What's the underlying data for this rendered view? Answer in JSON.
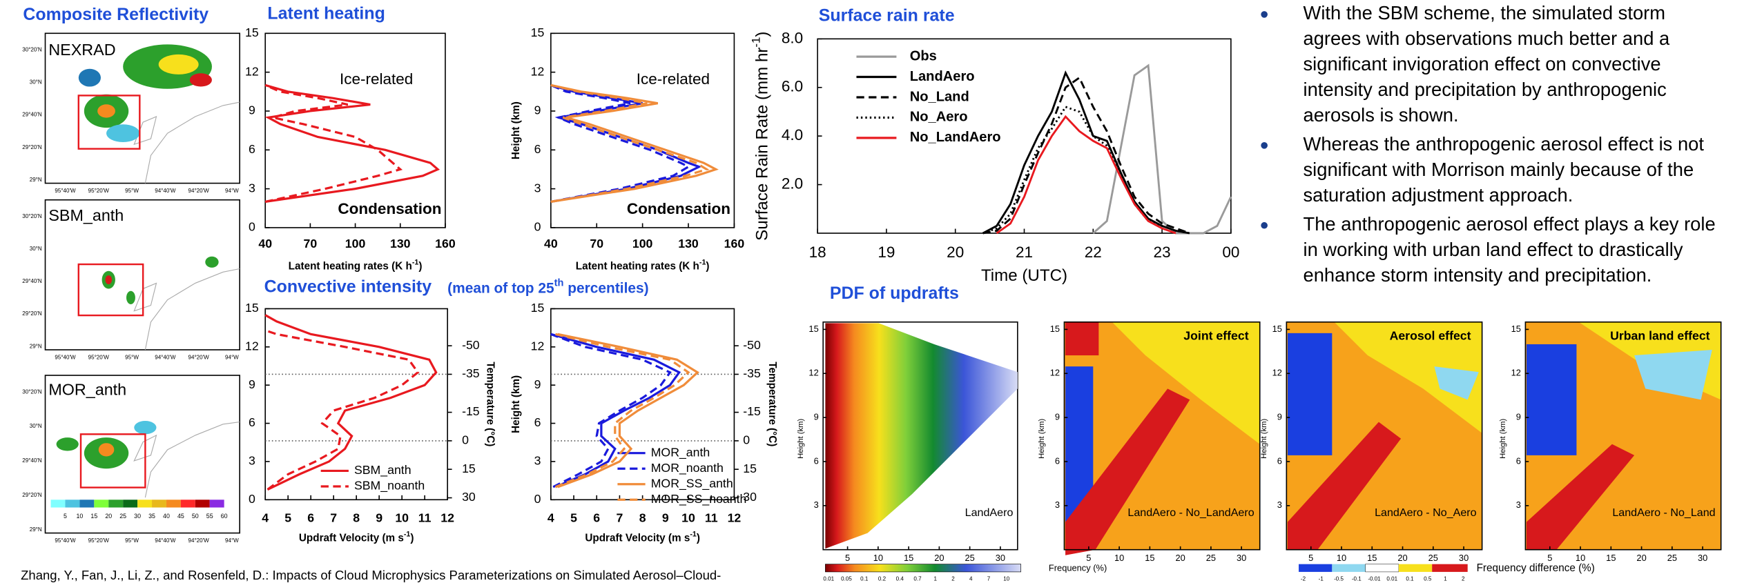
{
  "reflectivity": {
    "title": "Composite Reflectivity",
    "maps": [
      "NEXRAD",
      "SBM_anth",
      "MOR_anth"
    ],
    "lat_labels": [
      "30°20'N",
      "30°N",
      "29°40'N",
      "29°20'N",
      "29°N"
    ],
    "lon_labels": [
      "95°40'W",
      "95°20'W",
      "95°W",
      "94°40'W",
      "94°20'W",
      "94°W"
    ],
    "colorbar": [
      5,
      10,
      15,
      20,
      25,
      30,
      35,
      40,
      45,
      50,
      55,
      60
    ]
  },
  "chart_data": [
    {
      "type": "line",
      "title": "Latent heating",
      "xlabel": [
        "Latent heating rates (K h",
        "-1",
        ")"
      ],
      "xlim": [
        40,
        160
      ],
      "xticks": [
        40,
        70,
        100,
        130,
        160
      ],
      "ylim": [
        0,
        15
      ],
      "yticks": [
        0,
        3,
        6,
        9,
        12,
        15
      ],
      "annotations": [
        "Ice-related",
        "Condensation"
      ],
      "series": [
        {
          "color": "#e8191f",
          "dash": "solid",
          "heights": [
            2,
            3,
            4,
            4.5,
            5,
            6,
            7,
            8,
            8.5,
            9,
            9.5,
            10,
            10.5,
            11
          ],
          "values": [
            40,
            100,
            145,
            155,
            150,
            120,
            75,
            50,
            42,
            70,
            110,
            85,
            55,
            40
          ]
        },
        {
          "color": "#e8191f",
          "dash": "dashed",
          "heights": [
            2,
            3,
            4,
            4.5,
            5,
            6,
            7,
            8,
            8.5,
            9,
            9.5,
            10,
            10.5,
            11
          ],
          "values": [
            40,
            80,
            115,
            130,
            125,
            115,
            100,
            65,
            45,
            60,
            95,
            75,
            50,
            40
          ]
        }
      ]
    },
    {
      "type": "line",
      "ylabel": "Height (km)",
      "xlabel": [
        "Latent heating rates (K h",
        "-1",
        ")"
      ],
      "xlim": [
        40,
        160
      ],
      "xticks": [
        40,
        70,
        100,
        130,
        160
      ],
      "ylim": [
        0,
        15
      ],
      "yticks": [
        0,
        3,
        6,
        9,
        12,
        15
      ],
      "annotations": [
        "Ice-related",
        "Condensation"
      ],
      "series": [
        {
          "color": "#1a1adc",
          "dash": "solid",
          "heights": [
            2,
            3,
            4,
            4.7,
            5,
            6,
            7,
            8,
            8.5,
            9,
            9.6,
            10,
            10.5,
            11
          ],
          "values": [
            40,
            90,
            125,
            137,
            130,
            110,
            85,
            60,
            45,
            70,
            100,
            80,
            55,
            40
          ]
        },
        {
          "color": "#1a1adc",
          "dash": "dashed",
          "heights": [
            2,
            3,
            4,
            4.7,
            5,
            6,
            7,
            8,
            8.5,
            9,
            9.6,
            10,
            10.5,
            11
          ],
          "values": [
            40,
            85,
            120,
            130,
            125,
            105,
            80,
            55,
            45,
            65,
            92,
            75,
            50,
            40
          ]
        },
        {
          "color": "#f08c3a",
          "dash": "solid",
          "heights": [
            2,
            3,
            4,
            4.5,
            5,
            6,
            7,
            8,
            8.5,
            9,
            9.6,
            10,
            10.5,
            11
          ],
          "values": [
            40,
            95,
            135,
            148,
            140,
            115,
            90,
            65,
            50,
            80,
            110,
            90,
            60,
            40
          ]
        },
        {
          "color": "#f08c3a",
          "dash": "dashed",
          "heights": [
            2,
            3,
            4,
            4.5,
            5,
            6,
            7,
            8,
            8.5,
            9,
            9.6,
            10,
            10.5,
            11
          ],
          "values": [
            40,
            90,
            128,
            142,
            135,
            110,
            85,
            60,
            48,
            75,
            103,
            85,
            58,
            40
          ]
        }
      ]
    },
    {
      "type": "line",
      "title": "Convective intensity",
      "subtitle": [
        "(mean of top 25",
        "th",
        " percentiles)"
      ],
      "xlabel": [
        "Updraft Velocity (m s",
        "-1",
        ")"
      ],
      "xlim": [
        4,
        12
      ],
      "xticks": [
        4,
        5,
        6,
        7,
        8,
        9,
        10,
        11,
        12
      ],
      "ylim": [
        0,
        15
      ],
      "yticks": [
        0,
        3,
        6,
        9,
        12,
        15
      ],
      "y2label": "Temperature (°C)",
      "y2lim": [
        31,
        -69.5
      ],
      "y2ticks": [
        -50,
        -35,
        -15,
        0,
        15,
        30
      ],
      "ref_lines_y2": [
        -35,
        0
      ],
      "legend": "lower right",
      "series": [
        {
          "name": "SBM_anth",
          "color": "#e8191f",
          "dash": "solid",
          "heights": [
            0.8,
            2,
            3,
            4,
            5,
            6,
            7,
            8,
            9,
            10,
            11,
            12,
            13,
            14,
            14.5
          ],
          "values": [
            4.1,
            5.5,
            6.8,
            7.5,
            7.8,
            7.2,
            7.5,
            9.5,
            11,
            11.5,
            11.2,
            9,
            6,
            4.5,
            4
          ]
        },
        {
          "name": "SBM_noanth",
          "color": "#e8191f",
          "dash": "dashed",
          "heights": [
            0.8,
            2,
            3,
            4,
            5,
            6,
            7,
            8,
            9,
            10,
            11,
            12,
            13,
            13.3
          ],
          "values": [
            4.1,
            5,
            6.2,
            7.2,
            7.3,
            6.5,
            7,
            8.8,
            10,
            10.7,
            10.3,
            7.5,
            4.5,
            4
          ]
        }
      ]
    },
    {
      "type": "line",
      "ylabel": "Height (km)",
      "xlabel": [
        "Updraft Velocity (m s",
        "-1",
        ")"
      ],
      "xlim": [
        4,
        12
      ],
      "xticks": [
        4,
        5,
        6,
        7,
        8,
        9,
        10,
        11,
        12
      ],
      "ylim": [
        0,
        15
      ],
      "yticks": [
        0,
        3,
        6,
        9,
        12,
        15
      ],
      "y2label": "Temperature (°C)",
      "y2lim": [
        31,
        -69.5
      ],
      "y2ticks": [
        -50,
        -35,
        -15,
        0,
        15,
        30
      ],
      "ref_lines_y2": [
        -35,
        0
      ],
      "legend": "lower right",
      "series": [
        {
          "name": "MOR_anth",
          "color": "#1a1adc",
          "dash": "solid",
          "heights": [
            1,
            2,
            3,
            4,
            5,
            6,
            7,
            8,
            9,
            10,
            11,
            12,
            13
          ],
          "values": [
            4.2,
            5.5,
            6.5,
            6.8,
            6.2,
            6.2,
            7.2,
            8.3,
            9.2,
            9.6,
            8.5,
            6,
            4
          ]
        },
        {
          "name": "MOR_noanth",
          "color": "#1a1adc",
          "dash": "dashed",
          "heights": [
            1,
            2,
            3,
            4,
            5,
            6,
            7,
            8,
            9,
            10,
            11,
            12,
            13
          ],
          "values": [
            4.1,
            5.2,
            6.2,
            6.5,
            6,
            6.1,
            7,
            8,
            8.8,
            9.2,
            8,
            5.5,
            4
          ]
        },
        {
          "name": "MOR_SS_anth",
          "color": "#f08c3a",
          "dash": "solid",
          "heights": [
            1,
            2,
            3,
            4,
            5,
            6,
            7,
            8,
            9,
            10,
            11,
            12,
            13
          ],
          "values": [
            4.3,
            5.8,
            7,
            7.5,
            7,
            7,
            7.8,
            8.8,
            9.8,
            10.4,
            9.5,
            7,
            4.3
          ]
        },
        {
          "name": "MOR_SS_noanth",
          "color": "#f08c3a",
          "dash": "dashed",
          "heights": [
            1,
            2,
            3,
            4,
            5,
            6,
            7,
            8,
            9,
            10,
            11,
            12,
            13
          ],
          "values": [
            4.2,
            5.6,
            6.7,
            7.2,
            6.8,
            6.8,
            7.5,
            8.5,
            9.4,
            10,
            9.2,
            6.5,
            4.2
          ]
        }
      ]
    },
    {
      "type": "line",
      "title": "Surface rain rate",
      "xlabel": "Time (UTC)",
      "ylabel": [
        "Surface Rain Rate (mm hr",
        "-1",
        ")"
      ],
      "x": [
        20.4,
        20.6,
        20.8,
        21.0,
        21.2,
        21.4,
        21.6,
        21.8,
        22.0,
        22.2,
        22.4,
        22.6,
        22.8,
        23.0,
        23.2,
        23.4,
        23.6,
        23.8,
        24.0
      ],
      "xlim": [
        18,
        24
      ],
      "xticks": [
        18,
        19,
        20,
        21,
        22,
        23,
        {
          "value": 24,
          "label": "00"
        }
      ],
      "ylim": [
        0,
        8
      ],
      "yticks": [
        {
          "value": 2,
          "label": "2.0"
        },
        {
          "value": 4,
          "label": "4.0"
        },
        {
          "value": 6,
          "label": "6.0"
        },
        {
          "value": 8,
          "label": "8.0"
        }
      ],
      "legend": "upper left",
      "series": [
        {
          "name": "Obs",
          "color": "#9a9a9a",
          "dash": "solid",
          "values": [
            null,
            null,
            null,
            null,
            null,
            null,
            null,
            null,
            0,
            0.5,
            3.5,
            6.5,
            6.9,
            0.5,
            0,
            0,
            0,
            0.3,
            1.5
          ]
        },
        {
          "name": "LandAero",
          "color": "#000000",
          "dash": "solid",
          "values": [
            0,
            0.3,
            1.2,
            2.8,
            4.0,
            5.0,
            6.6,
            5.5,
            4.0,
            3.8,
            2.5,
            1.3,
            0.6,
            0.3,
            0.1,
            0,
            null,
            null,
            null
          ]
        },
        {
          "name": "No_Land",
          "color": "#000000",
          "dash": "dashed",
          "values": [
            0,
            0.1,
            0.6,
            2.0,
            3.3,
            4.5,
            6.0,
            6.4,
            5.2,
            4.2,
            2.8,
            1.5,
            0.8,
            0.4,
            0.2,
            0,
            null,
            null,
            null
          ]
        },
        {
          "name": "No_Aero",
          "color": "#000000",
          "dash": "dotted",
          "values": [
            0,
            0.2,
            0.8,
            2.2,
            3.5,
            4.3,
            5.2,
            5.0,
            4.0,
            3.6,
            2.4,
            1.2,
            0.5,
            0.3,
            0.1,
            0,
            null,
            null,
            null
          ]
        },
        {
          "name": "No_LandAero",
          "color": "#e8191f",
          "dash": "solid",
          "values": [
            null,
            0,
            0.4,
            1.5,
            3.0,
            4.0,
            4.8,
            4.2,
            3.8,
            3.5,
            2.3,
            1.2,
            0.5,
            0.2,
            0,
            null,
            null,
            null,
            null
          ]
        }
      ]
    }
  ],
  "pdf": {
    "title": "PDF of updrafts",
    "ylabel": "Height (km)",
    "yticks": [
      3,
      6,
      9,
      12,
      15
    ],
    "xticks": [
      5,
      10,
      15,
      20,
      25,
      30
    ],
    "panels": [
      {
        "label": "LandAero"
      },
      {
        "effect": "Joint effect",
        "label": "LandAero - No_LandAero"
      },
      {
        "effect": "Aerosol effect",
        "label": "LandAero - No_Aero"
      },
      {
        "effect": "Urban land effect",
        "label": "LandAero - No_Land"
      }
    ],
    "freq_colorbar": [
      0.01,
      0.05,
      0.1,
      0.2,
      0.4,
      0.7,
      1,
      2,
      4,
      7,
      10
    ],
    "freq_label": "Frequency (%)",
    "diff_colorbar": [
      -2,
      -1,
      -0.5,
      -0.1,
      -0.01,
      0.01,
      0.1,
      0.5,
      1,
      2
    ],
    "diff_label": "Frequency difference (%)"
  },
  "bullets": [
    [
      "With the SBM scheme, the simulated storm",
      "agrees with observations much better and a",
      "significant invigoration effect on convective",
      "intensity and precipitation by anthropogenic",
      "aerosols is shown."
    ],
    [
      "Whereas the anthropogenic aerosol effect is not",
      "significant with Morrison mainly because of the",
      "saturation adjustment approach."
    ],
    [
      "The anthropogenic aerosol effect plays a key role",
      "in working with urban land effect to drastically",
      "enhance storm intensity and precipitation."
    ]
  ],
  "citation": "Zhang, Y., Fan, J., Li, Z., and Rosenfeld, D.: Impacts of Cloud Microphysics Parameterizations on Simulated Aerosol–Cloud-"
}
